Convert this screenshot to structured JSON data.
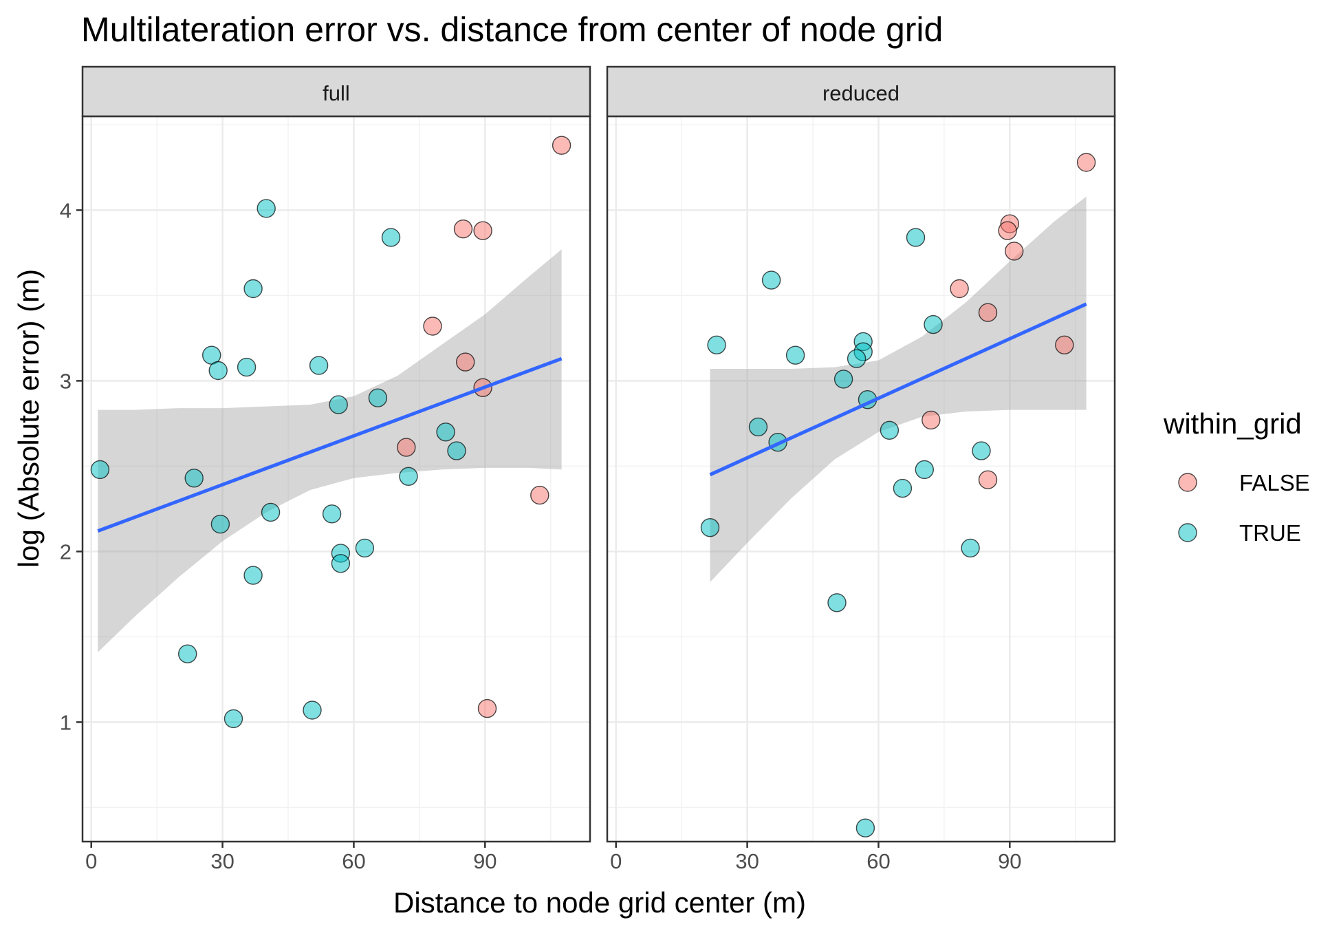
{
  "chart_data": {
    "type": "scatter",
    "title": "Multilateration error vs. distance from center of node grid",
    "xlabel": "Distance to node grid center (m)",
    "ylabel": "log (Absolute error) (m)",
    "xlim": [
      -2,
      114
    ],
    "ylim": [
      0.3,
      4.55
    ],
    "x_ticks": [
      0,
      30,
      60,
      90
    ],
    "x_tick_labels": [
      "0",
      "30",
      "60",
      "90"
    ],
    "y_ticks": [
      1,
      2,
      3,
      4
    ],
    "y_tick_labels": [
      "1",
      "2",
      "3",
      "4"
    ],
    "grid": true,
    "legend": {
      "title": "within_grid",
      "position": "right",
      "entries": [
        {
          "label": "FALSE",
          "color": "#F8766D"
        },
        {
          "label": "TRUE",
          "color": "#00BFC4"
        }
      ]
    },
    "colors": {
      "FALSE": "#F8766D",
      "TRUE": "#00BFC4",
      "trend": "#3366FF",
      "band": "#999999"
    },
    "panels": [
      {
        "label": "full",
        "trend": {
          "x": [
            1.5,
            107.5
          ],
          "y": [
            2.12,
            3.13
          ]
        },
        "band": {
          "x": [
            1.5,
            10,
            20,
            30,
            40,
            50,
            60,
            70,
            80,
            90,
            100,
            107.5
          ],
          "lower": [
            1.41,
            1.62,
            1.85,
            2.06,
            2.23,
            2.36,
            2.43,
            2.46,
            2.48,
            2.49,
            2.49,
            2.48
          ],
          "upper": [
            2.83,
            2.83,
            2.84,
            2.84,
            2.85,
            2.86,
            2.91,
            3.03,
            3.21,
            3.39,
            3.61,
            3.77
          ]
        },
        "series": [
          {
            "name": "FALSE",
            "points": [
              [
                107.5,
                4.38
              ],
              [
                85,
                3.89
              ],
              [
                89.5,
                3.88
              ],
              [
                78,
                3.32
              ],
              [
                85.5,
                3.11
              ],
              [
                89.5,
                2.96
              ],
              [
                72,
                2.61
              ],
              [
                102.5,
                2.33
              ],
              [
                90.5,
                1.08
              ]
            ]
          },
          {
            "name": "TRUE",
            "points": [
              [
                40,
                4.01
              ],
              [
                68.5,
                3.84
              ],
              [
                37,
                3.54
              ],
              [
                27.5,
                3.15
              ],
              [
                35.5,
                3.08
              ],
              [
                29,
                3.06
              ],
              [
                52,
                3.09
              ],
              [
                56.5,
                2.86
              ],
              [
                65.5,
                2.9
              ],
              [
                81,
                2.7
              ],
              [
                83.5,
                2.59
              ],
              [
                72.5,
                2.44
              ],
              [
                2,
                2.48
              ],
              [
                23.5,
                2.43
              ],
              [
                41,
                2.23
              ],
              [
                55,
                2.22
              ],
              [
                29.5,
                2.16
              ],
              [
                57,
                1.99
              ],
              [
                62.5,
                2.02
              ],
              [
                57,
                1.93
              ],
              [
                37,
                1.86
              ],
              [
                22,
                1.4
              ],
              [
                50.5,
                1.07
              ],
              [
                32.5,
                1.02
              ]
            ]
          }
        ]
      },
      {
        "label": "reduced",
        "trend": {
          "x": [
            21.5,
            107.5
          ],
          "y": [
            2.45,
            3.45
          ]
        },
        "band": {
          "x": [
            21.5,
            30,
            40,
            50,
            60,
            70,
            80,
            90,
            100,
            107.5
          ],
          "lower": [
            1.82,
            2.05,
            2.31,
            2.54,
            2.7,
            2.79,
            2.82,
            2.83,
            2.83,
            2.83
          ],
          "upper": [
            3.07,
            3.07,
            3.07,
            3.08,
            3.12,
            3.26,
            3.46,
            3.7,
            3.93,
            4.08
          ]
        },
        "series": [
          {
            "name": "FALSE",
            "points": [
              [
                107.5,
                4.28
              ],
              [
                90,
                3.92
              ],
              [
                89.5,
                3.88
              ],
              [
                91,
                3.76
              ],
              [
                78.5,
                3.54
              ],
              [
                85,
                3.4
              ],
              [
                102.5,
                3.21
              ],
              [
                72,
                2.77
              ],
              [
                85,
                2.42
              ]
            ]
          },
          {
            "name": "TRUE",
            "points": [
              [
                68.5,
                3.84
              ],
              [
                35.5,
                3.59
              ],
              [
                72.5,
                3.33
              ],
              [
                23,
                3.21
              ],
              [
                56.5,
                3.23
              ],
              [
                56.5,
                3.17
              ],
              [
                55,
                3.13
              ],
              [
                41,
                3.15
              ],
              [
                52,
                3.01
              ],
              [
                57.5,
                2.89
              ],
              [
                32.5,
                2.73
              ],
              [
                62.5,
                2.71
              ],
              [
                37,
                2.64
              ],
              [
                70.5,
                2.48
              ],
              [
                83.5,
                2.59
              ],
              [
                65.5,
                2.37
              ],
              [
                21.5,
                2.14
              ],
              [
                81,
                2.02
              ],
              [
                50.5,
                1.7
              ],
              [
                57,
                0.38
              ]
            ]
          }
        ]
      }
    ]
  }
}
